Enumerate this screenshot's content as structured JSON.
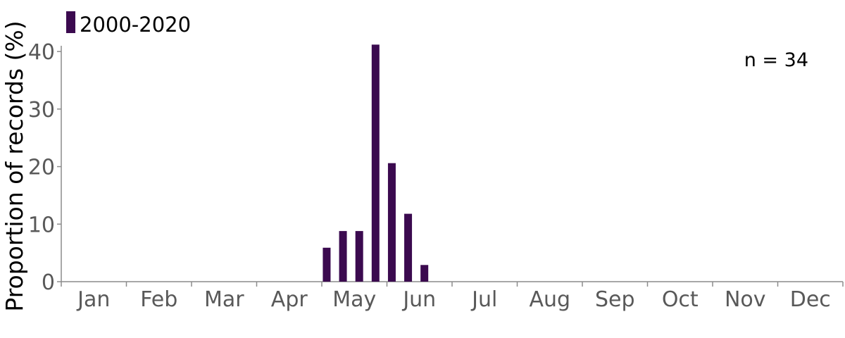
{
  "chart_data": {
    "type": "bar",
    "legend": {
      "label": "2000-2020",
      "color": "#3b0a4f",
      "placement": "top-left"
    },
    "ylabel": "Proportion of records (%)",
    "xlabel": "",
    "ylim": [
      0,
      41
    ],
    "yticks": [
      0,
      10,
      20,
      30,
      40
    ],
    "months": [
      "Jan",
      "Feb",
      "Mar",
      "Apr",
      "May",
      "Jun",
      "Jul",
      "Aug",
      "Sep",
      "Oct",
      "Nov",
      "Dec"
    ],
    "x_unit": "month (bars per week-of-month; x = month index + fraction)",
    "bars": [
      {
        "x": 4.0,
        "value": 5.9
      },
      {
        "x": 4.25,
        "value": 8.8
      },
      {
        "x": 4.5,
        "value": 8.8
      },
      {
        "x": 4.75,
        "value": 41.2
      },
      {
        "x": 5.0,
        "value": 20.6
      },
      {
        "x": 5.25,
        "value": 11.8
      },
      {
        "x": 5.5,
        "value": 2.9
      }
    ],
    "annotation": "n = 34",
    "grid": false
  }
}
